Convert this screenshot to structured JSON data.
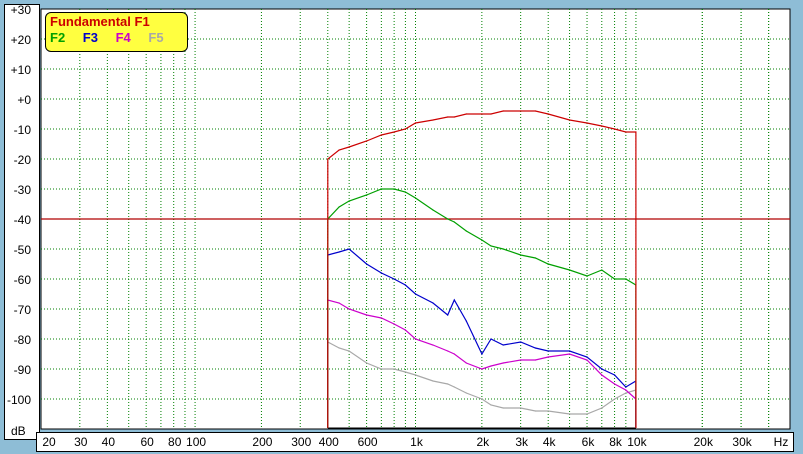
{
  "chart_data": {
    "type": "line",
    "title": "",
    "xlabel": "Hz",
    "ylabel": "dB",
    "xscale": "log",
    "xlim": [
      20,
      50000
    ],
    "ylim": [
      -110,
      30
    ],
    "grid": true,
    "legend_placement": "top-left",
    "highlight_line_y": -40,
    "yticks": [
      "+30",
      "+20",
      "+10",
      "+0",
      "-10",
      "-20",
      "-30",
      "-40",
      "-50",
      "-60",
      "-70",
      "-80",
      "-90",
      "-100"
    ],
    "ytick_values": [
      30,
      20,
      10,
      0,
      -10,
      -20,
      -30,
      -40,
      -50,
      -60,
      -70,
      -80,
      -90,
      -100
    ],
    "xticks": [
      {
        "v": 20,
        "t": "20"
      },
      {
        "v": 30,
        "t": "30"
      },
      {
        "v": 40,
        "t": "40"
      },
      {
        "v": 60,
        "t": "60"
      },
      {
        "v": 80,
        "t": "80"
      },
      {
        "v": 100,
        "t": "100"
      },
      {
        "v": 200,
        "t": "200"
      },
      {
        "v": 300,
        "t": "300"
      },
      {
        "v": 400,
        "t": "400"
      },
      {
        "v": 600,
        "t": "600"
      },
      {
        "v": 1000,
        "t": "1k"
      },
      {
        "v": 2000,
        "t": "2k"
      },
      {
        "v": 3000,
        "t": "3k"
      },
      {
        "v": 4000,
        "t": "4k"
      },
      {
        "v": 6000,
        "t": "6k"
      },
      {
        "v": 8000,
        "t": "8k"
      },
      {
        "v": 10000,
        "t": "10k"
      },
      {
        "v": 20000,
        "t": "20k"
      },
      {
        "v": 30000,
        "t": "30k"
      }
    ],
    "x": [
      400,
      450,
      500,
      600,
      700,
      800,
      900,
      1000,
      1200,
      1400,
      1500,
      1700,
      2000,
      2200,
      2500,
      3000,
      3500,
      4000,
      5000,
      6000,
      7000,
      8000,
      9000,
      10000
    ],
    "series": [
      {
        "name": "Fundamental F1",
        "color": "#cc0000",
        "values": [
          -20,
          -17,
          -16,
          -14,
          -12,
          -11,
          -10,
          -8,
          -7,
          -6,
          -6,
          -5,
          -5,
          -5,
          -4,
          -4,
          -4,
          -5,
          -7,
          -8,
          -9,
          -10,
          -11,
          -11
        ]
      },
      {
        "name": "F2",
        "color": "#00a000",
        "values": [
          -40,
          -36,
          -34,
          -32,
          -30,
          -30,
          -31,
          -33,
          -37,
          -40,
          -41,
          -44,
          -47,
          -49,
          -50,
          -52,
          -53,
          -55,
          -57,
          -59,
          -57,
          -60,
          -60,
          -62
        ]
      },
      {
        "name": "F3",
        "color": "#0000cc",
        "values": [
          -52,
          -51,
          -50,
          -55,
          -58,
          -60,
          -62,
          -65,
          -68,
          -72,
          -67,
          -74,
          -85,
          -80,
          -82,
          -81,
          -83,
          -84,
          -84,
          -86,
          -90,
          -92,
          -96,
          -94
        ]
      },
      {
        "name": "F4",
        "color": "#cc00cc",
        "values": [
          -67,
          -68,
          -70,
          -72,
          -73,
          -75,
          -77,
          -80,
          -82,
          -84,
          -85,
          -88,
          -90,
          -89,
          -88,
          -87,
          -87,
          -86,
          -85,
          -87,
          -92,
          -95,
          -97,
          -100
        ]
      },
      {
        "name": "F5",
        "color": "#a8a8a8",
        "values": [
          -81,
          -83,
          -84,
          -88,
          -90,
          -90,
          -91,
          -92,
          -94,
          -95,
          -96,
          -98,
          -100,
          -102,
          -103,
          -103,
          -104,
          -104,
          -105,
          -105,
          -103,
          -100,
          -98,
          -97
        ]
      }
    ],
    "legend": {
      "title": "Fundamental F1",
      "entries": [
        "F2",
        "F3",
        "F4",
        "F5"
      ]
    }
  }
}
